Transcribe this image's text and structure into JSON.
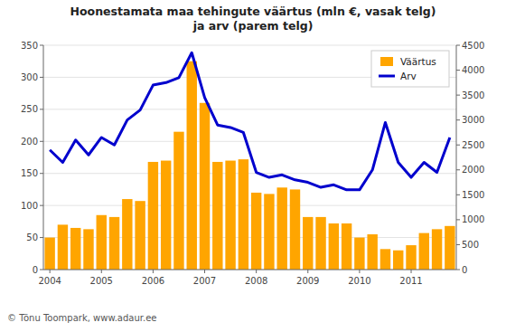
{
  "chart_data": {
    "type": "bar",
    "title": "Hoonestamata maa tehingute väärtus (mln €, vasak telg)\nja arv (parem telg)",
    "categories": [
      "2004",
      null,
      null,
      null,
      "2005",
      null,
      null,
      null,
      "2006",
      null,
      null,
      null,
      "2007",
      null,
      null,
      null,
      "2008",
      null,
      null,
      null,
      "2009",
      null,
      null,
      null,
      "2010",
      null,
      null,
      null,
      "2011",
      null,
      null,
      null
    ],
    "series": [
      {
        "name": "Väärtus",
        "type": "bar",
        "color": "#FFA500",
        "values": [
          50,
          70,
          65,
          63,
          85,
          82,
          110,
          107,
          168,
          170,
          215,
          325,
          260,
          168,
          170,
          172,
          120,
          118,
          128,
          125,
          82,
          82,
          72,
          72,
          50,
          55,
          32,
          30,
          38,
          57,
          63,
          68
        ]
      },
      {
        "name": "Arv",
        "type": "line",
        "axis": "y2",
        "color": "#0000CD",
        "values": [
          2400,
          2150,
          2600,
          2300,
          2650,
          2500,
          3000,
          3200,
          3700,
          3750,
          3850,
          4350,
          3450,
          2900,
          2850,
          2750,
          1950,
          1850,
          1900,
          1800,
          1750,
          1650,
          1700,
          1600,
          1600,
          2000,
          2950,
          2150,
          1850,
          2150,
          1950,
          2650
        ]
      }
    ],
    "ylim": [
      0,
      350
    ],
    "yticks": [
      0,
      50,
      100,
      150,
      200,
      250,
      300,
      350
    ],
    "y2lim": [
      0,
      4500
    ],
    "y2ticks": [
      0,
      500,
      1000,
      1500,
      2000,
      2500,
      3000,
      3500,
      4000,
      4500
    ],
    "grid": true,
    "legend": "upper-right",
    "annotations": [
      "© Tõnu Toompark, www.adaur.ee"
    ]
  }
}
